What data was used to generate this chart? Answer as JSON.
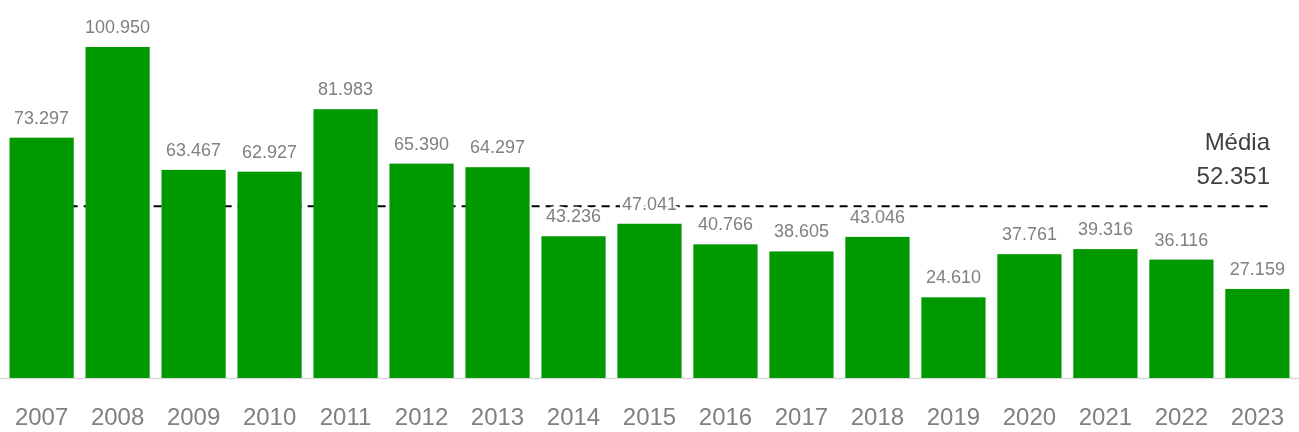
{
  "chart_data": {
    "type": "bar",
    "categories": [
      "2007",
      "2008",
      "2009",
      "2010",
      "2011",
      "2012",
      "2013",
      "2014",
      "2015",
      "2016",
      "2017",
      "2018",
      "2019",
      "2020",
      "2021",
      "2022",
      "2023"
    ],
    "values": [
      73297,
      100950,
      63467,
      62927,
      81983,
      65390,
      64297,
      43236,
      47041,
      40766,
      38605,
      43046,
      24610,
      37761,
      39316,
      36116,
      27159
    ],
    "value_labels": [
      "73.297",
      "100.950",
      "63.467",
      "62.927",
      "81.983",
      "65.390",
      "64.297",
      "43.236",
      "47.041",
      "40.766",
      "38.605",
      "43.046",
      "24.610",
      "37.761",
      "39.316",
      "36.116",
      "27.159"
    ],
    "color": "#009900",
    "ref_lines": [
      {
        "axis": "y",
        "value": 52351,
        "label": "Média\n52.351",
        "color": "#000000",
        "line_style": "dashed"
      }
    ]
  }
}
